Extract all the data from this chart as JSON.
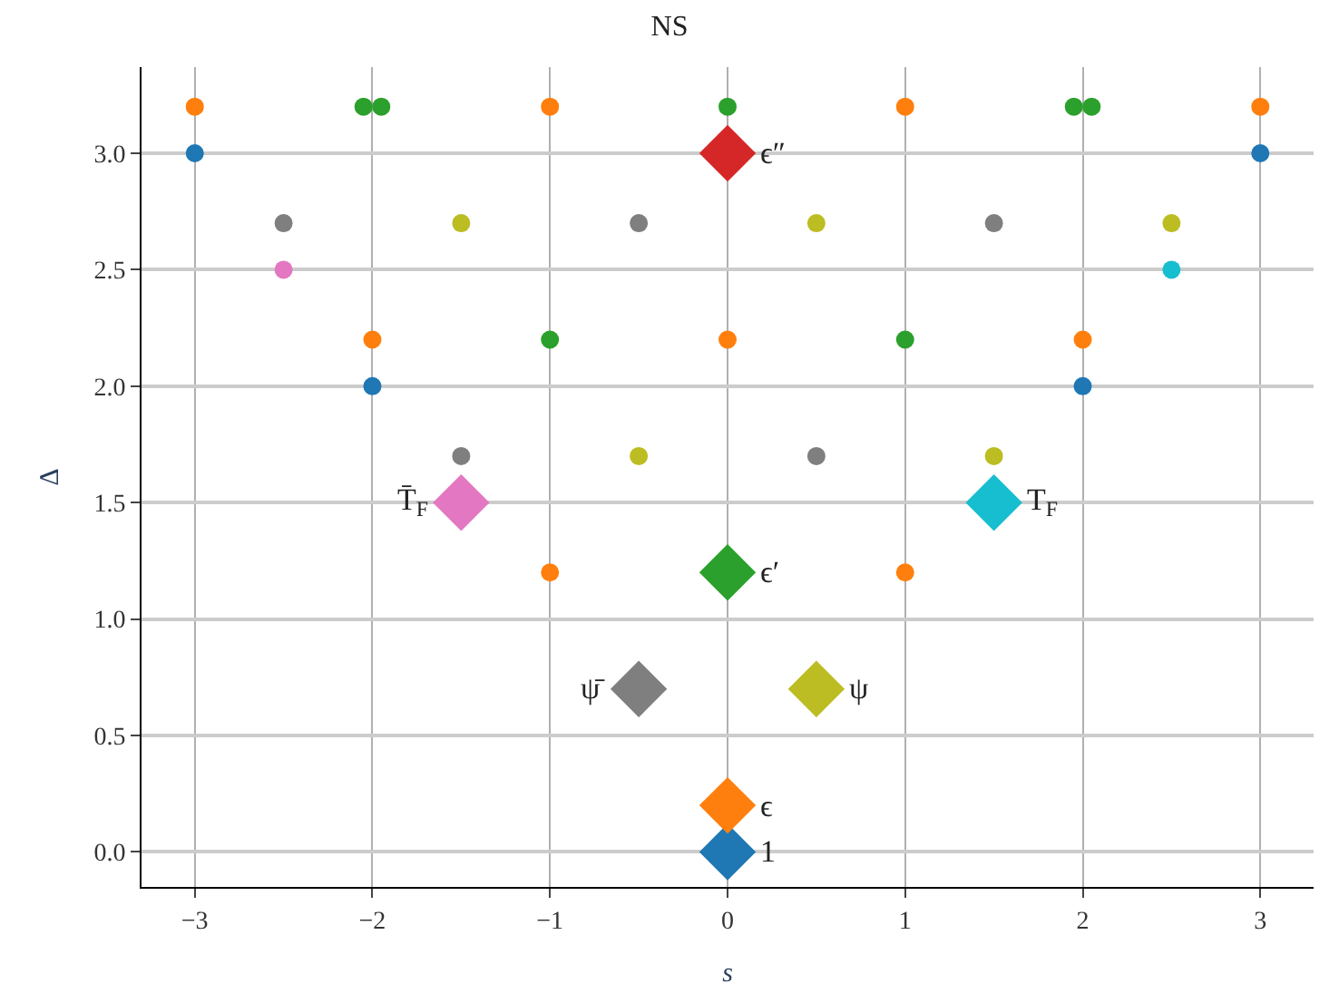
{
  "chart_data": {
    "type": "scatter",
    "title": "NS",
    "xlabel": "s",
    "ylabel": "Δ",
    "xlim": [
      -3.3,
      3.3
    ],
    "ylim": [
      -0.15,
      3.37
    ],
    "xticks": [
      {
        "value": -3,
        "label": "−3"
      },
      {
        "value": -2,
        "label": "−2"
      },
      {
        "value": -1,
        "label": "−1"
      },
      0,
      1,
      2,
      3
    ],
    "yticks": [
      {
        "value": 0,
        "label": "0.0"
      },
      {
        "value": 0.5,
        "label": "0.5"
      },
      {
        "value": 1,
        "label": "1.0"
      },
      {
        "value": 1.5,
        "label": "1.5"
      },
      {
        "value": 2,
        "label": "2.0"
      },
      {
        "value": 2.5,
        "label": "2.5"
      },
      {
        "value": 3,
        "label": "3.0"
      }
    ],
    "grid": true,
    "legend": false,
    "series": [
      {
        "color": "#1f77b4",
        "marker": "circle",
        "x": [
          -3,
          3,
          -2,
          2
        ],
        "values": [
          3,
          3,
          2,
          2
        ]
      },
      {
        "color": "#ff7f0e",
        "marker": "circle",
        "x": [
          -3,
          -1,
          1,
          3,
          -2,
          0,
          2,
          -1,
          1
        ],
        "values": [
          3.2,
          3.2,
          3.2,
          3.2,
          2.2,
          2.2,
          2.2,
          1.2,
          1.2
        ]
      },
      {
        "color": "#2ca02c",
        "marker": "circle",
        "x": [
          -2.05,
          -1.95,
          0,
          1.95,
          2.05,
          -1,
          1
        ],
        "values": [
          3.2,
          3.2,
          3.2,
          3.2,
          3.2,
          2.2,
          2.2
        ]
      },
      {
        "color": "#7f7f7f",
        "marker": "circle",
        "x": [
          -2.5,
          -0.5,
          1.5,
          -1.5,
          0.5
        ],
        "values": [
          2.7,
          2.7,
          2.7,
          1.7,
          1.7
        ]
      },
      {
        "color": "#bcbd22",
        "marker": "circle",
        "x": [
          -1.5,
          0.5,
          2.5,
          -0.5,
          1.5
        ],
        "values": [
          2.7,
          2.7,
          2.7,
          1.7,
          1.7
        ]
      },
      {
        "color": "#e377c2",
        "marker": "circle",
        "x": [
          -2.5
        ],
        "values": [
          2.5
        ]
      },
      {
        "color": "#17becf",
        "marker": "circle",
        "x": [
          2.5
        ],
        "values": [
          2.5
        ]
      },
      {
        "name": "1",
        "color": "#1f77b4",
        "marker": "diamond",
        "x": [
          0
        ],
        "values": [
          0
        ]
      },
      {
        "name": "ϵ",
        "color": "#ff7f0e",
        "marker": "diamond",
        "x": [
          0
        ],
        "values": [
          0.2
        ]
      },
      {
        "name": "ϵ′",
        "color": "#2ca02c",
        "marker": "diamond",
        "x": [
          0
        ],
        "values": [
          1.2
        ]
      },
      {
        "name": "ϵ″",
        "color": "#d62728",
        "marker": "diamond",
        "x": [
          0
        ],
        "values": [
          3
        ]
      },
      {
        "name": "T̄$_{F}$",
        "color": "#e377c2",
        "marker": "diamond",
        "x": [
          -1.5
        ],
        "values": [
          1.5
        ]
      },
      {
        "name": "T$_{F}$",
        "color": "#17becf",
        "marker": "diamond",
        "x": [
          1.5
        ],
        "values": [
          1.5
        ]
      },
      {
        "name": "ψ̄",
        "color": "#7f7f7f",
        "marker": "diamond",
        "x": [
          -0.5
        ],
        "values": [
          0.7
        ]
      },
      {
        "name": "ψ",
        "color": "#bcbd22",
        "marker": "diamond",
        "x": [
          0.5
        ],
        "values": [
          0.7
        ]
      }
    ]
  }
}
